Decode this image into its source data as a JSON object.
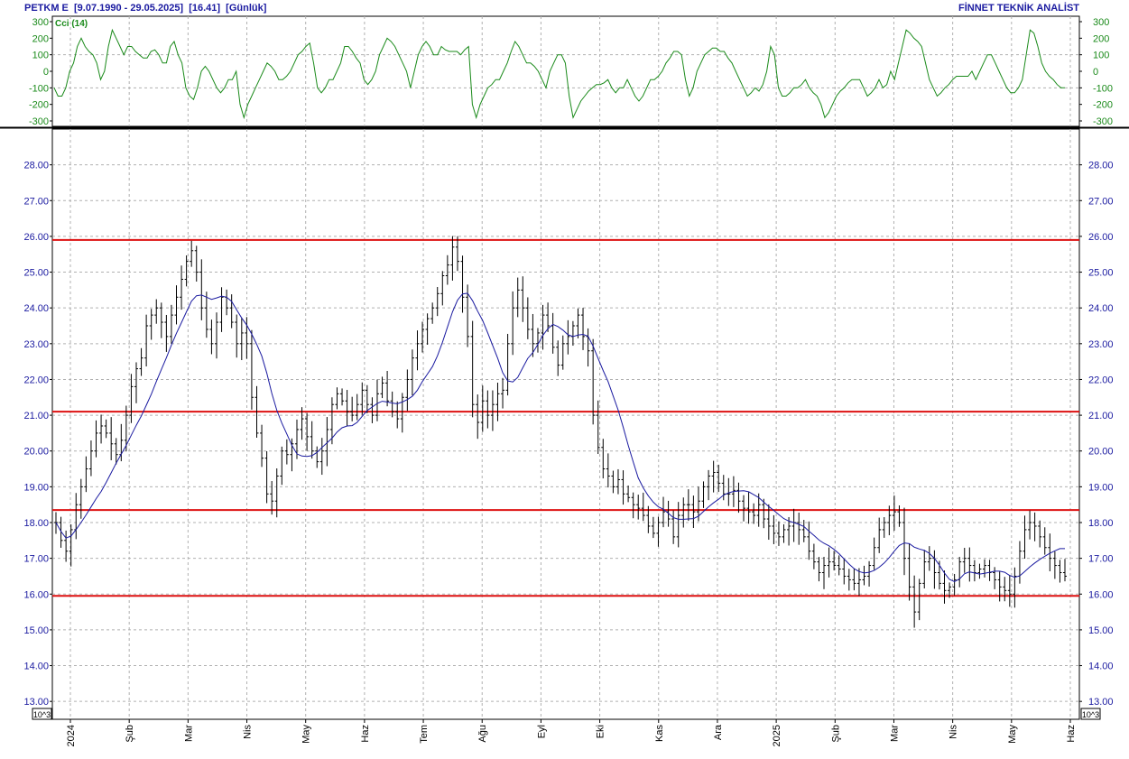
{
  "header": {
    "title_left": "PETKM E  [9.07.1990 - 29.05.2025]  [16.41]  [Günlük]",
    "title_right": "FİNNET TEKNİK ANALİST"
  },
  "indicator": {
    "label": "Cci (14)",
    "ticks": [
      "300",
      "200",
      "100",
      "0",
      "-100",
      "-200",
      "-300"
    ],
    "values": [
      -100,
      -150,
      -150,
      -100,
      0,
      50,
      150,
      200,
      150,
      120,
      100,
      50,
      -50,
      0,
      150,
      250,
      200,
      150,
      100,
      150,
      150,
      120,
      100,
      80,
      80,
      120,
      130,
      100,
      50,
      50,
      150,
      180,
      100,
      50,
      -100,
      -150,
      -170,
      -100,
      0,
      30,
      0,
      -50,
      -100,
      -130,
      -100,
      -50,
      -50,
      0,
      -200,
      -280,
      -200,
      -150,
      -100,
      -50,
      0,
      50,
      30,
      0,
      -50,
      -50,
      -30,
      0,
      50,
      100,
      120,
      150,
      170,
      50,
      -100,
      -130,
      -100,
      -50,
      -50,
      0,
      50,
      150,
      150,
      120,
      80,
      50,
      -50,
      -80,
      -50,
      0,
      100,
      150,
      200,
      180,
      150,
      100,
      50,
      0,
      -100,
      0,
      100,
      150,
      180,
      150,
      100,
      100,
      150,
      130,
      120,
      120,
      120,
      100,
      130,
      150,
      -200,
      -280,
      -200,
      -150,
      -100,
      -80,
      -50,
      -50,
      0,
      50,
      120,
      180,
      150,
      100,
      50,
      50,
      30,
      0,
      -50,
      -100,
      0,
      50,
      100,
      100,
      50,
      -150,
      -280,
      -230,
      -180,
      -150,
      -120,
      -100,
      -80,
      -80,
      -70,
      -50,
      -100,
      -130,
      -100,
      -100,
      -50,
      -100,
      -150,
      -180,
      -150,
      -100,
      -50,
      -50,
      -30,
      0,
      50,
      80,
      120,
      120,
      100,
      -50,
      -150,
      -100,
      0,
      50,
      100,
      120,
      140,
      140,
      120,
      120,
      80,
      50,
      0,
      -50,
      -100,
      -150,
      -130,
      -100,
      -120,
      -80,
      0,
      150,
      100,
      -100,
      -150,
      -150,
      -130,
      -100,
      -100,
      -80,
      -50,
      -100,
      -130,
      -150,
      -200,
      -280,
      -250,
      -200,
      -150,
      -120,
      -100,
      -70,
      -50,
      -50,
      -50,
      -100,
      -150,
      -130,
      -100,
      -50,
      -100,
      -80,
      0,
      -50,
      50,
      150,
      250,
      230,
      200,
      180,
      150,
      50,
      -50,
      -100,
      -150,
      -130,
      -100,
      -80,
      -50,
      -30,
      -30,
      -30,
      -30,
      0,
      -50,
      0,
      50,
      100,
      100,
      50,
      0,
      -50,
      -100,
      -130,
      -130,
      -100,
      -50,
      100,
      250,
      230,
      150,
      50,
      0,
      -30,
      -50,
      -80,
      -100,
      -100
    ]
  },
  "price_axis": {
    "ticks": [
      "28.00",
      "27.00",
      "26.00",
      "25.00",
      "24.00",
      "23.00",
      "22.00",
      "21.00",
      "20.00",
      "19.00",
      "18.00",
      "17.00",
      "16.00",
      "15.00",
      "14.00",
      "13.00"
    ],
    "scale_label": "10^3"
  },
  "x_axis": {
    "labels": [
      "2024",
      "Şub",
      "Mar",
      "Nis",
      "May",
      "Haz",
      "Tem",
      "Ağu",
      "Eyl",
      "Eki",
      "Kas",
      "Ara",
      "2025",
      "Şub",
      "Mar",
      "Nis",
      "May",
      "Haz"
    ]
  },
  "colors": {
    "title": "#1a1aa0",
    "axis_text": "#1a1aa0",
    "cci_line": "#1a8a1a",
    "price_bars": "#000000",
    "moving_average": "#1a1aa0",
    "horizontal_lines": "#dd1111",
    "grid": "#b0b0b0"
  },
  "chart_data": [
    {
      "type": "line",
      "name": "Cci (14)",
      "ylim": [
        -350,
        350
      ],
      "yticks": [
        300,
        200,
        100,
        0,
        -100,
        -200,
        -300
      ],
      "reference_lines": [
        100,
        -100
      ],
      "grid": true
    },
    {
      "type": "ohlc",
      "ylim": [
        12.5,
        29
      ],
      "yticks": [
        28,
        27,
        26,
        25,
        24,
        23,
        22,
        21,
        20,
        19,
        18,
        17,
        16,
        15,
        14,
        13
      ],
      "x_labels": [
        "2024",
        "Şub",
        "Mar",
        "Nis",
        "May",
        "Haz",
        "Tem",
        "Ağu",
        "Eyl",
        "Eki",
        "Kas",
        "Ara",
        "2025",
        "Şub",
        "Mar",
        "Nis",
        "May",
        "Haz"
      ],
      "horizontal_lines": [
        25.9,
        21.1,
        18.35,
        15.95
      ],
      "close": [
        18.0,
        17.5,
        17.2,
        17.8,
        18.5,
        19.0,
        19.5,
        20.0,
        20.5,
        20.7,
        20.5,
        20.2,
        19.9,
        20.3,
        21.0,
        21.8,
        22.3,
        22.6,
        23.5,
        23.8,
        24.0,
        23.6,
        23.2,
        23.8,
        24.3,
        24.8,
        25.3,
        25.6,
        25.0,
        24.0,
        23.4,
        23.0,
        23.6,
        24.3,
        24.0,
        23.6,
        23.0,
        23.3,
        23.0,
        21.5,
        20.5,
        19.8,
        18.8,
        18.6,
        19.3,
        20.0,
        19.9,
        20.2,
        20.6,
        20.9,
        20.4,
        20.0,
        19.7,
        20.0,
        20.6,
        21.3,
        21.6,
        21.4,
        21.1,
        21.0,
        21.3,
        21.7,
        21.3,
        21.0,
        21.6,
        21.9,
        21.4,
        21.1,
        20.9,
        21.5,
        22.0,
        22.6,
        23.0,
        23.4,
        23.7,
        24.0,
        24.4,
        24.9,
        25.2,
        25.7,
        25.3,
        24.3,
        23.2,
        21.3,
        20.8,
        21.4,
        21.0,
        21.3,
        21.6,
        21.7,
        23.0,
        24.0,
        24.5,
        24.0,
        23.4,
        23.0,
        23.3,
        23.8,
        23.5,
        22.9,
        22.4,
        23.0,
        23.2,
        23.5,
        23.8,
        23.2,
        22.8,
        21.0,
        20.1,
        19.5,
        19.3,
        19.0,
        19.2,
        18.8,
        18.7,
        18.5,
        18.4,
        18.2,
        17.9,
        17.7,
        18.0,
        18.3,
        18.1,
        17.6,
        18.2,
        18.5,
        18.5,
        18.3,
        18.6,
        19.0,
        19.3,
        19.4,
        19.1,
        18.8,
        18.8,
        18.9,
        18.6,
        18.4,
        18.3,
        18.2,
        18.5,
        18.1,
        17.9,
        17.7,
        17.6,
        17.8,
        17.9,
        18.0,
        17.8,
        17.6,
        17.2,
        16.9,
        16.6,
        16.8,
        16.9,
        16.8,
        16.7,
        16.5,
        16.4,
        16.3,
        16.4,
        16.5,
        16.8,
        17.3,
        17.8,
        18.0,
        18.2,
        18.3,
        18.0,
        17.0,
        16.2,
        15.5,
        16.3,
        16.9,
        17.0,
        16.6,
        16.3,
        16.1,
        16.2,
        16.4,
        16.9,
        17.0,
        16.8,
        16.6,
        16.7,
        16.8,
        16.6,
        16.4,
        16.2,
        16.1,
        16.0,
        16.5,
        17.2,
        17.8,
        18.0,
        17.9,
        17.6,
        17.3,
        17.0,
        16.8,
        16.6,
        16.5
      ]
    }
  ]
}
